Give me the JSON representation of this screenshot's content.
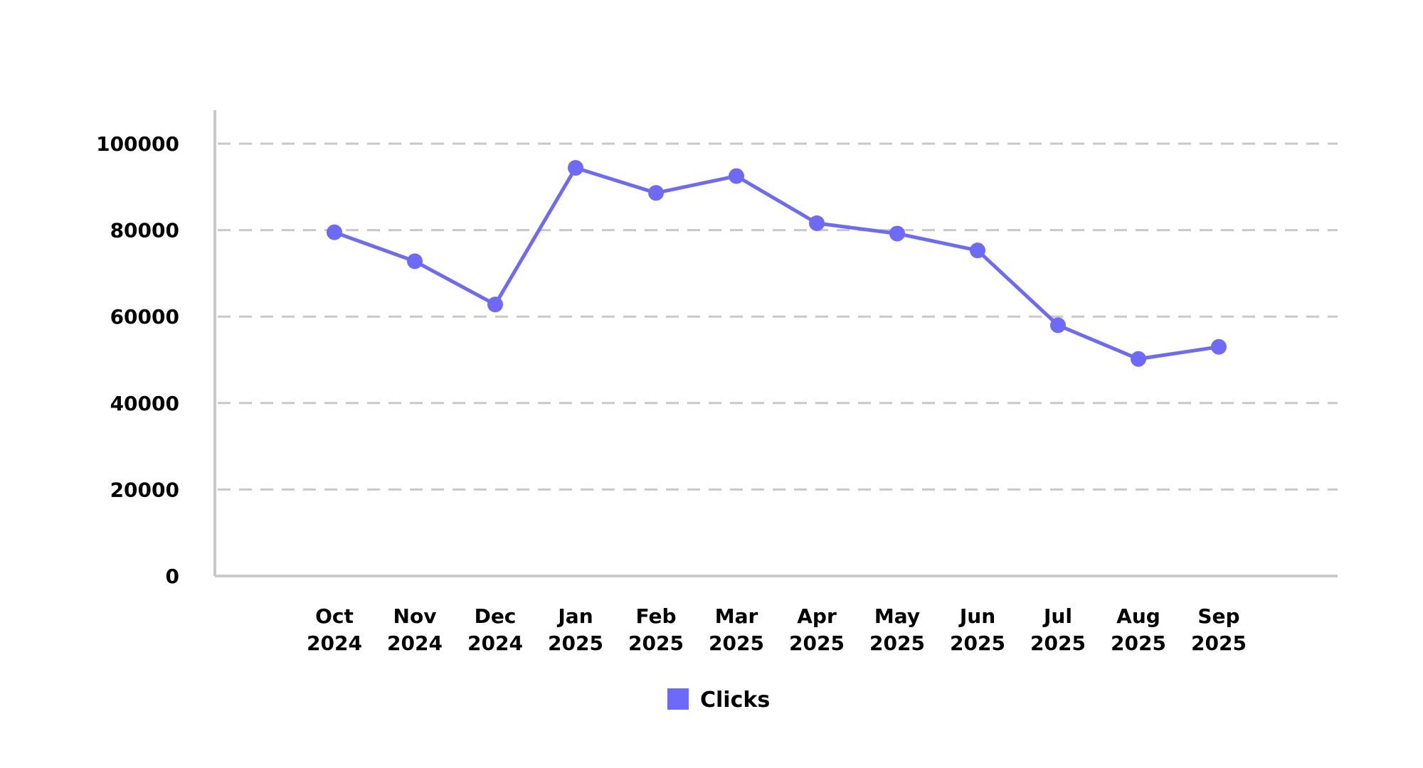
{
  "chart_data": {
    "type": "line",
    "title": "",
    "xlabel": "",
    "ylabel": "",
    "categories": [
      [
        "Oct",
        "2024"
      ],
      [
        "Nov",
        "2024"
      ],
      [
        "Dec",
        "2024"
      ],
      [
        "Jan",
        "2025"
      ],
      [
        "Feb",
        "2025"
      ],
      [
        "Mar",
        "2025"
      ],
      [
        "Apr",
        "2025"
      ],
      [
        "May",
        "2025"
      ],
      [
        "Jun",
        "2025"
      ],
      [
        "Jul",
        "2025"
      ],
      [
        "Aug",
        "2025"
      ],
      [
        "Sep",
        "2025"
      ]
    ],
    "series": [
      {
        "name": "Clicks",
        "color": "#6C6AF7",
        "values": [
          79500,
          72800,
          62800,
          94400,
          88600,
          92500,
          81600,
          79200,
          75300,
          58000,
          50200,
          53000
        ]
      }
    ],
    "ylim": [
      0,
      100000
    ],
    "yticks": [
      "0",
      "20000",
      "40000",
      "60000",
      "80000",
      "100000"
    ],
    "grid": true,
    "legend_position": "bottom-center",
    "colors": {
      "axis": "#C8C8C8",
      "grid": "#C8C8C8",
      "text": "#000000"
    }
  }
}
